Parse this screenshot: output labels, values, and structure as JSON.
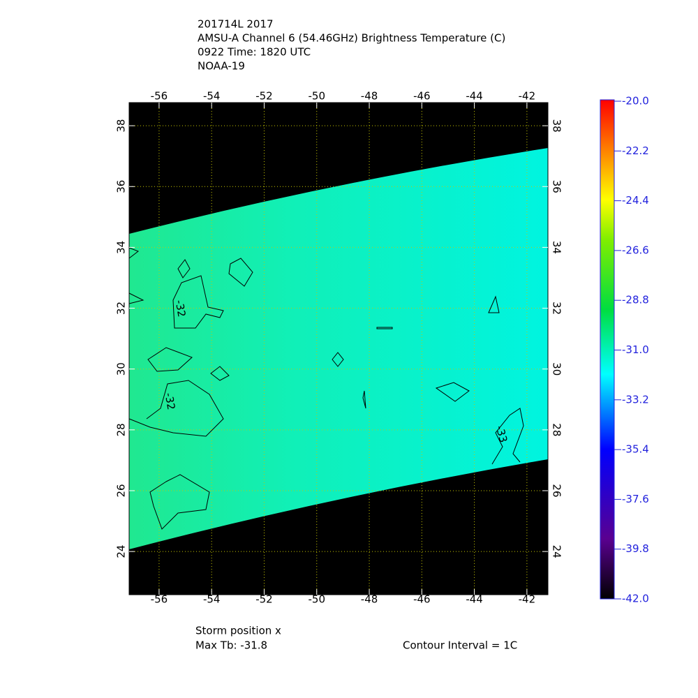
{
  "header": {
    "lines": [
      "201714L 2017",
      "AMSU-A Channel 6 (54.46GHz) Brightness Temperature (C)",
      "0922 Time: 1820 UTC",
      "NOAA-19"
    ]
  },
  "map": {
    "xlim": [
      -57.14,
      -41.2
    ],
    "ylim": [
      22.58,
      38.76
    ],
    "xticks": [
      -56,
      -54,
      -52,
      -50,
      -48,
      -46,
      -44,
      -42
    ],
    "yticks": [
      24,
      26,
      28,
      30,
      32,
      34,
      36,
      38
    ],
    "grid": true,
    "contour_labels": [
      "-32",
      "-32",
      "-33"
    ]
  },
  "colorbar": {
    "lim": [
      -42,
      -20
    ],
    "ticks": [
      {
        "value": -20,
        "label": "-20.0"
      },
      -22.2,
      -24.4,
      -26.6,
      -28.8,
      {
        "value": -31,
        "label": "-31.0"
      },
      -33.2,
      -35.4,
      -37.6,
      -39.8,
      {
        "value": -42,
        "label": "-42.0"
      }
    ]
  },
  "footer": {
    "storm": "Storm position x",
    "max_tb": "Max Tb: -31.8",
    "interval": "Contour Interval = 1C"
  }
}
